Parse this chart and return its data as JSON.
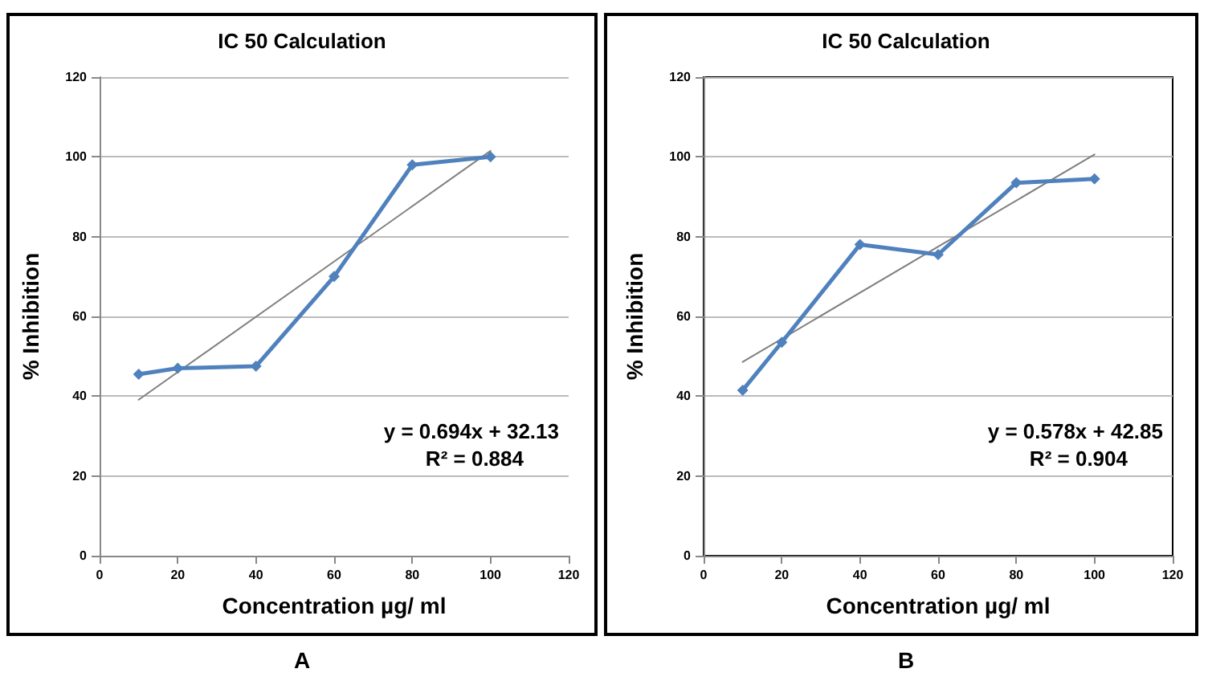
{
  "chart_data": [
    {
      "type": "line",
      "title": "IC 50 Calculation",
      "xlabel": "Concentration µg/ ml",
      "ylabel": "% Inhibition",
      "xlim": [
        0,
        120
      ],
      "xticks": [
        0,
        20,
        40,
        60,
        80,
        100,
        120
      ],
      "ylim": [
        0,
        120
      ],
      "yticks": [
        0,
        20,
        40,
        60,
        80,
        100,
        120
      ],
      "grid": "y",
      "marker": "diamond",
      "series": [
        {
          "x": [
            10,
            20,
            40,
            60,
            80,
            100
          ],
          "values": [
            45.5,
            47,
            47.5,
            70,
            98,
            100
          ],
          "color": "#4f81bd"
        },
        {
          "x": [
            10,
            100
          ],
          "values": [
            39.1,
            101.5
          ],
          "color": "#808080",
          "marker": "none"
        }
      ],
      "annotations": [
        "y = 0.694x + 32.13",
        "R² = 0.884",
        "A"
      ]
    },
    {
      "type": "line",
      "title": "IC 50 Calculation",
      "xlabel": "Concentration µg/ ml",
      "ylabel": "% Inhibition",
      "xlim": [
        0,
        120
      ],
      "xticks": [
        0,
        20,
        40,
        60,
        80,
        100,
        120
      ],
      "ylim": [
        0,
        120
      ],
      "yticks": [
        0,
        20,
        40,
        60,
        80,
        100,
        120
      ],
      "grid": "y",
      "marker": "diamond",
      "series": [
        {
          "x": [
            10,
            20,
            40,
            60,
            80,
            100
          ],
          "values": [
            41.5,
            53.5,
            78,
            75.5,
            93.5,
            94.5
          ],
          "color": "#4f81bd"
        },
        {
          "x": [
            10,
            100
          ],
          "values": [
            48.6,
            100.6
          ],
          "color": "#808080",
          "marker": "none"
        }
      ],
      "annotations": [
        "y = 0.578x + 42.85",
        "R² = 0.904",
        "B"
      ]
    }
  ]
}
